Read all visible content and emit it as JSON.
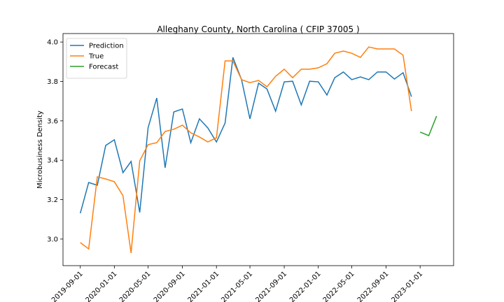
{
  "chart_data": {
    "type": "line",
    "title": "Alleghany County, North Carolina ( CFIP 37005 )",
    "y_label": "Microbusiness Density",
    "xlim": [
      "2019-07-01",
      "2023-05-01"
    ],
    "xticks": [
      "2019-09-01",
      "2020-01-01",
      "2020-05-01",
      "2020-09-01",
      "2021-01-01",
      "2021-05-01",
      "2021-09-01",
      "2022-01-01",
      "2022-05-01",
      "2022-09-01",
      "2023-01-01"
    ],
    "ylim": [
      2.865,
      4.043
    ],
    "yticks": [
      {
        "value": 3,
        "label": "3.0"
      },
      3.2,
      3.4,
      3.6,
      3.8,
      {
        "value": 4,
        "label": "4.0"
      }
    ],
    "legend": "upper left",
    "series": [
      {
        "name": "Prediction",
        "color": "#1f77b4",
        "x": [
          "2019-09-01",
          "2019-10-01",
          "2019-11-01",
          "2019-12-01",
          "2020-01-01",
          "2020-02-01",
          "2020-03-01",
          "2020-04-01",
          "2020-05-01",
          "2020-06-01",
          "2020-07-01",
          "2020-08-01",
          "2020-09-01",
          "2020-10-01",
          "2020-11-01",
          "2020-12-01",
          "2021-01-01",
          "2021-02-01",
          "2021-03-01",
          "2021-04-01",
          "2021-05-01",
          "2021-06-01",
          "2021-07-01",
          "2021-08-01",
          "2021-09-01",
          "2021-10-01",
          "2021-11-01",
          "2021-12-01",
          "2022-01-01",
          "2022-02-01",
          "2022-03-01",
          "2022-04-01",
          "2022-05-01",
          "2022-06-01",
          "2022-07-01",
          "2022-08-01",
          "2022-09-01",
          "2022-10-01",
          "2022-11-01",
          "2022-12-01"
        ],
        "values": [
          3.131,
          3.287,
          3.273,
          3.475,
          3.504,
          3.337,
          3.394,
          3.135,
          3.565,
          3.716,
          3.362,
          3.645,
          3.66,
          3.489,
          3.61,
          3.564,
          3.493,
          3.589,
          3.922,
          3.809,
          3.61,
          3.791,
          3.762,
          3.649,
          3.798,
          3.801,
          3.681,
          3.801,
          3.798,
          3.731,
          3.819,
          3.848,
          3.809,
          3.823,
          3.809,
          3.848,
          3.848,
          3.812,
          3.844,
          3.723
        ]
      },
      {
        "name": "True",
        "color": "#ff7f0e",
        "x": [
          "2019-09-01",
          "2019-10-01",
          "2019-11-01",
          "2019-12-01",
          "2020-01-01",
          "2020-02-01",
          "2020-03-01",
          "2020-04-01",
          "2020-05-01",
          "2020-06-01",
          "2020-07-01",
          "2020-08-01",
          "2020-09-01",
          "2020-10-01",
          "2020-11-01",
          "2020-12-01",
          "2021-01-01",
          "2021-02-01",
          "2021-03-01",
          "2021-04-01",
          "2021-05-01",
          "2021-06-01",
          "2021-07-01",
          "2021-08-01",
          "2021-09-01",
          "2021-10-01",
          "2021-11-01",
          "2021-12-01",
          "2022-01-01",
          "2022-02-01",
          "2022-03-01",
          "2022-04-01",
          "2022-05-01",
          "2022-06-01",
          "2022-07-01",
          "2022-08-01",
          "2022-09-01",
          "2022-10-01",
          "2022-11-01",
          "2022-12-01"
        ],
        "values": [
          2.982,
          2.95,
          3.316,
          3.305,
          3.291,
          3.22,
          2.929,
          3.397,
          3.479,
          3.489,
          3.546,
          3.557,
          3.578,
          3.539,
          3.518,
          3.493,
          3.514,
          3.904,
          3.904,
          3.809,
          3.794,
          3.805,
          3.773,
          3.826,
          3.862,
          3.819,
          3.862,
          3.862,
          3.869,
          3.89,
          3.943,
          3.954,
          3.943,
          3.922,
          3.975,
          3.965,
          3.965,
          3.965,
          3.933,
          3.649
        ]
      },
      {
        "name": "Forecast",
        "color": "#2ca02c",
        "x": [
          "2023-01-01",
          "2023-02-01",
          "2023-03-01"
        ],
        "values": [
          3.543,
          3.525,
          3.624
        ]
      }
    ]
  }
}
